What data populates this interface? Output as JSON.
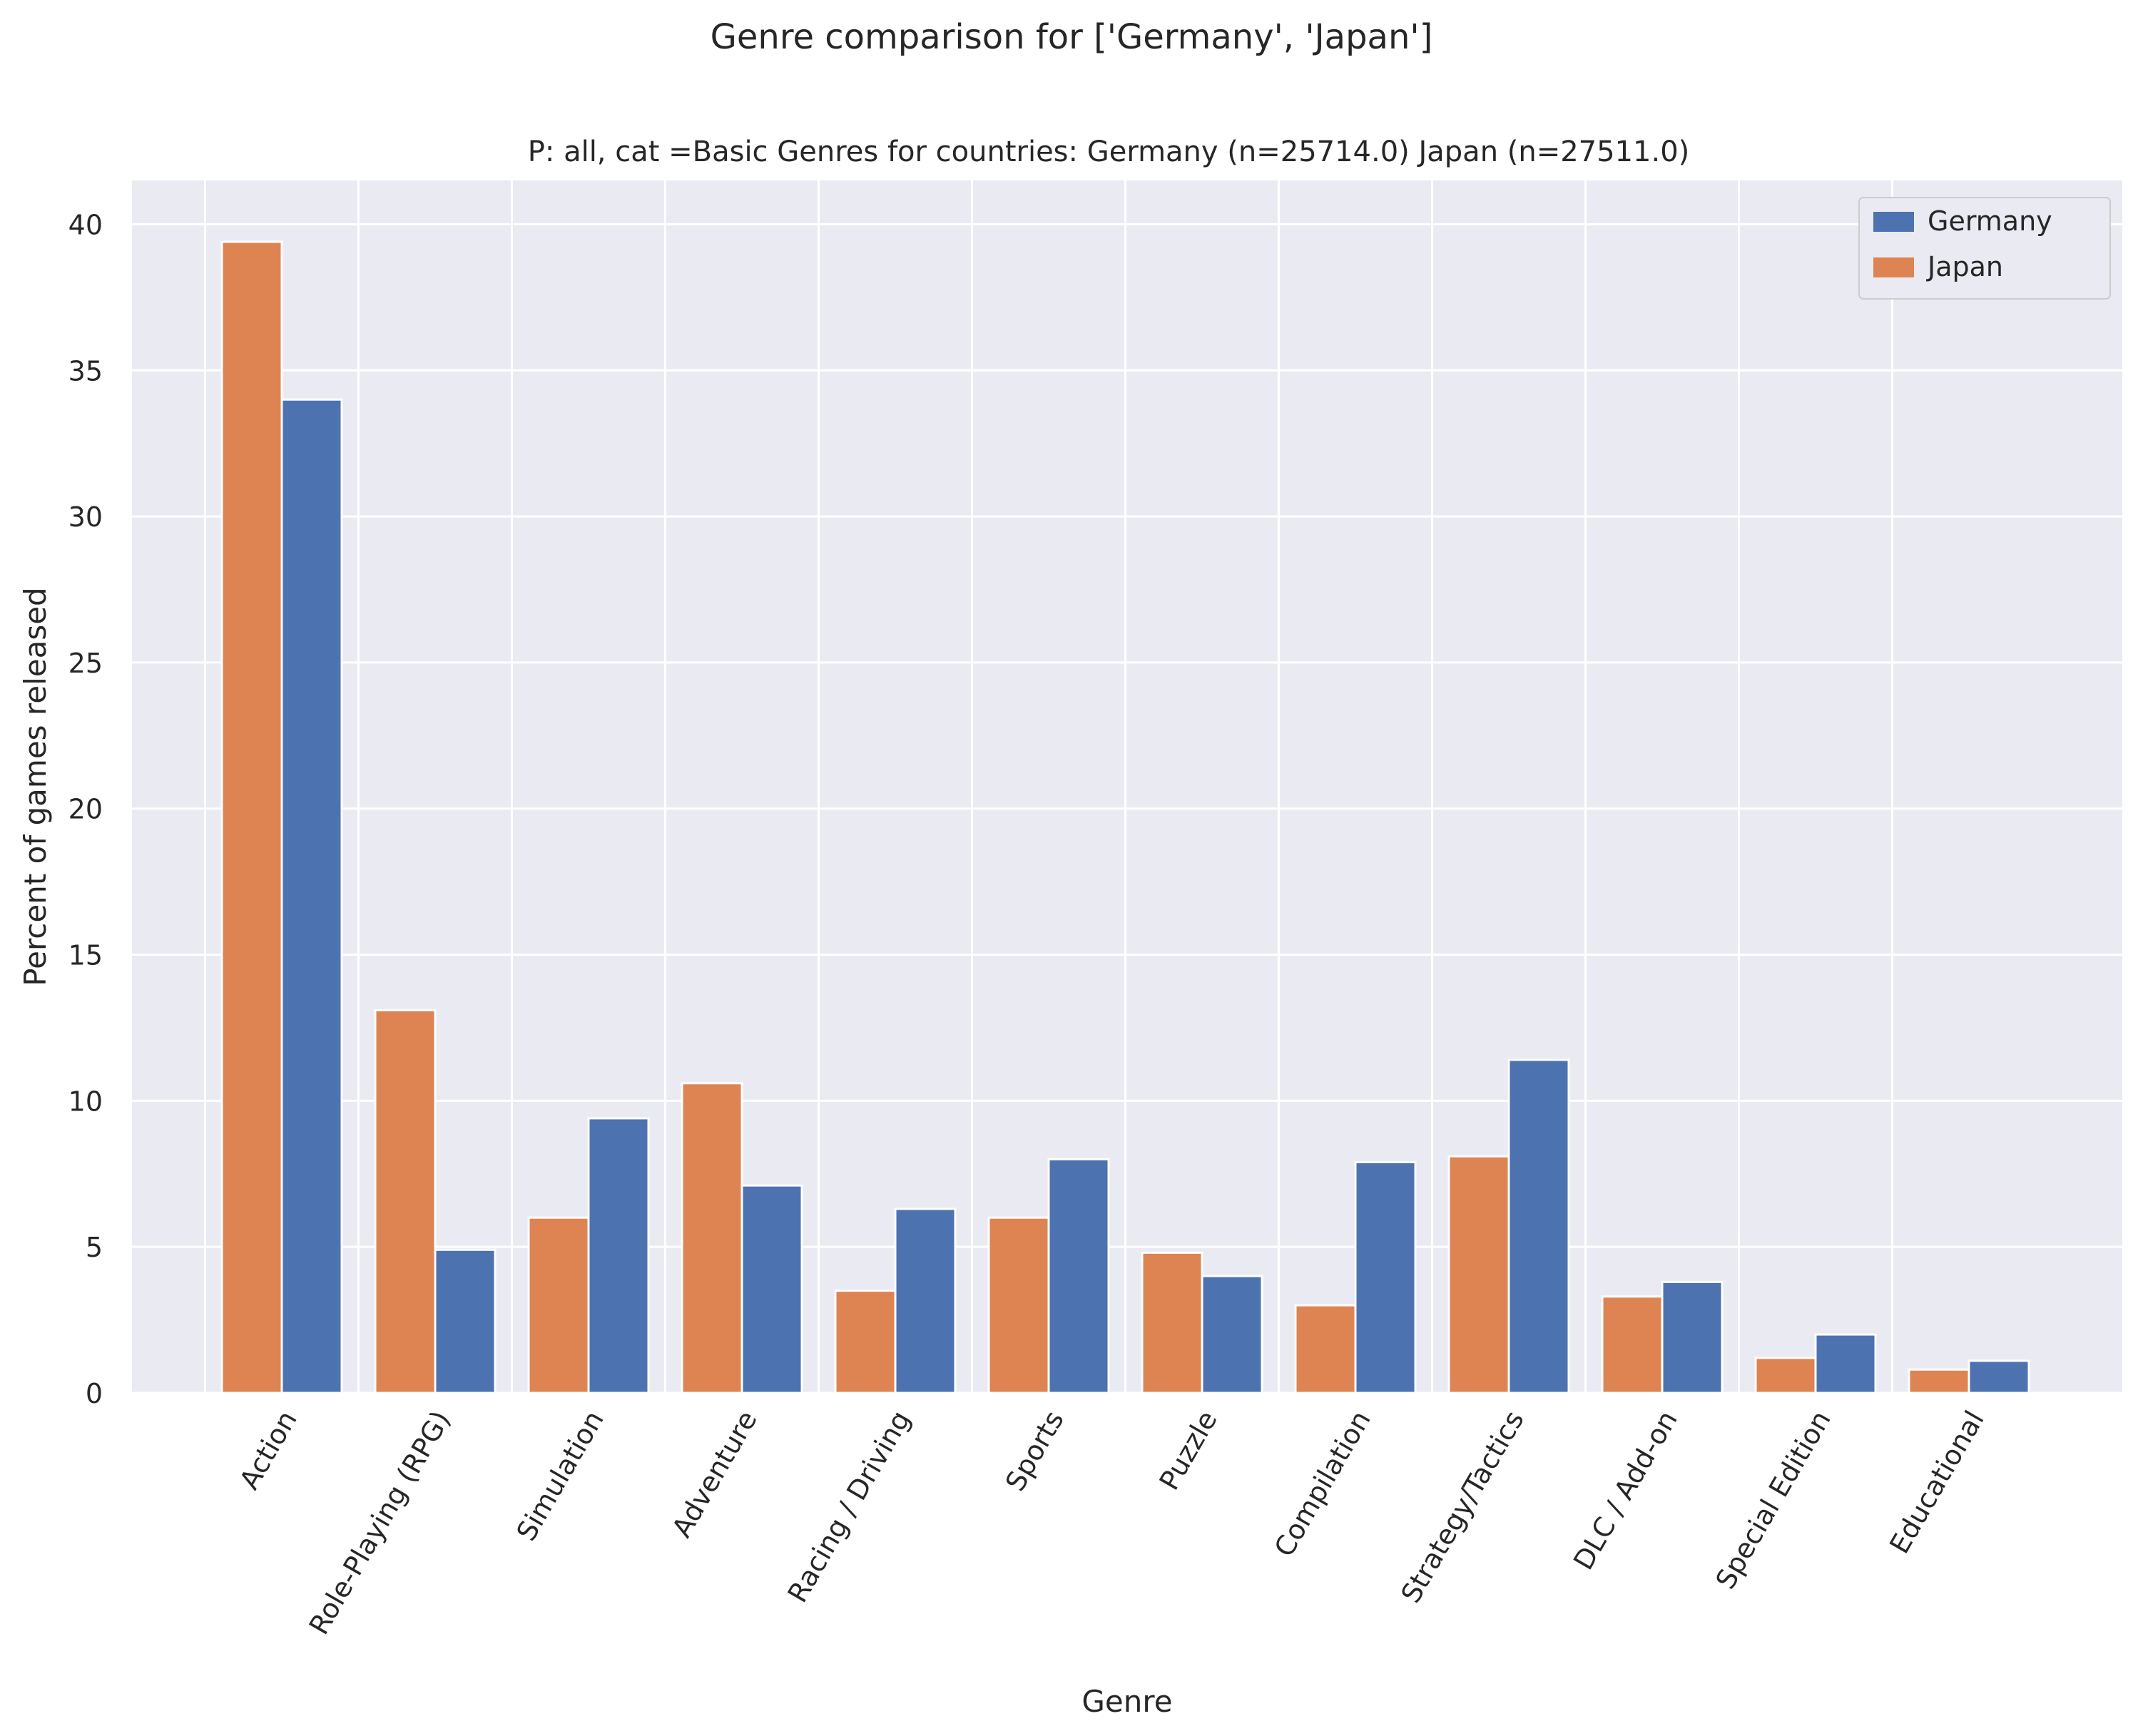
{
  "chart_data": {
    "type": "bar",
    "suptitle": "Genre comparison for ['Germany', 'Japan']",
    "title": "P: all, cat =Basic Genres for countries: Germany (n=25714.0) Japan (n=27511.0)",
    "xlabel": "Genre",
    "ylabel": "Percent of games released",
    "ylim": [
      0,
      41.5
    ],
    "yticks": [
      0,
      5,
      10,
      15,
      20,
      25,
      30,
      35,
      40
    ],
    "grid": true,
    "legend_position": "top-right",
    "categories": [
      "Action",
      "Role-Playing (RPG)",
      "Simulation",
      "Adventure",
      "Racing / Driving",
      "Sports",
      "Puzzle",
      "Compilation",
      "Strategy/Tactics",
      "DLC / Add-on",
      "Special Edition",
      "Educational"
    ],
    "series": [
      {
        "name": "Japan",
        "color": "#dd8452",
        "values": [
          39.4,
          13.1,
          6.0,
          10.6,
          3.5,
          6.0,
          4.8,
          3.0,
          8.1,
          3.3,
          1.2,
          0.8
        ]
      },
      {
        "name": "Germany",
        "color": "#4c72b0",
        "values": [
          34.0,
          4.9,
          9.4,
          7.1,
          6.3,
          8.0,
          4.0,
          7.9,
          11.4,
          3.8,
          2.0,
          1.1
        ]
      }
    ],
    "legend": [
      {
        "name": "Germany",
        "color": "#4c72b0"
      },
      {
        "name": "Japan",
        "color": "#dd8452"
      }
    ],
    "colors": {
      "plot_background": "#eaeaf2",
      "grid": "#ffffff"
    }
  }
}
